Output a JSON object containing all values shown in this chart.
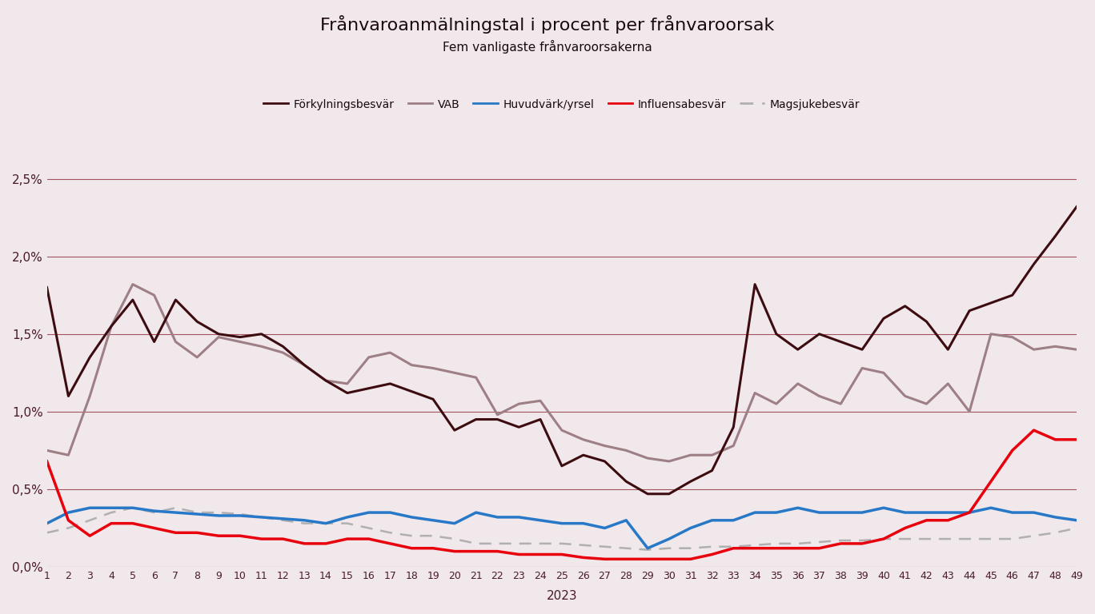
{
  "title": "Frånvaroanmälningstal i procent per frånvaroorsak",
  "subtitle": "Fem vanligaste frånvaroorsakerna",
  "xlabel": "2023",
  "weeks": [
    1,
    2,
    3,
    4,
    5,
    6,
    7,
    8,
    9,
    10,
    11,
    12,
    13,
    14,
    15,
    16,
    17,
    18,
    19,
    20,
    21,
    22,
    23,
    24,
    25,
    26,
    27,
    28,
    29,
    30,
    31,
    32,
    33,
    34,
    35,
    36,
    37,
    38,
    39,
    40,
    41,
    42,
    43,
    44,
    45,
    46,
    47,
    48,
    49
  ],
  "forkylning": [
    0.018,
    0.011,
    0.0135,
    0.0155,
    0.0172,
    0.0145,
    0.0172,
    0.0158,
    0.015,
    0.0148,
    0.015,
    0.0142,
    0.013,
    0.012,
    0.0112,
    0.0115,
    0.0118,
    0.0113,
    0.0108,
    0.0088,
    0.0095,
    0.0095,
    0.009,
    0.0095,
    0.0065,
    0.0072,
    0.0068,
    0.0055,
    0.0047,
    0.0047,
    0.0055,
    0.0062,
    0.009,
    0.0182,
    0.015,
    0.014,
    0.015,
    0.0145,
    0.014,
    0.016,
    0.0168,
    0.0158,
    0.014,
    0.0165,
    0.017,
    0.0175,
    0.0195,
    0.0213,
    0.0232
  ],
  "vab": [
    0.0075,
    0.0072,
    0.011,
    0.0155,
    0.0182,
    0.0175,
    0.0145,
    0.0135,
    0.0148,
    0.0145,
    0.0142,
    0.0138,
    0.013,
    0.012,
    0.0118,
    0.0135,
    0.0138,
    0.013,
    0.0128,
    0.0125,
    0.0122,
    0.0098,
    0.0105,
    0.0107,
    0.0088,
    0.0082,
    0.0078,
    0.0075,
    0.007,
    0.0068,
    0.0072,
    0.0072,
    0.0078,
    0.0112,
    0.0105,
    0.0118,
    0.011,
    0.0105,
    0.0128,
    0.0125,
    0.011,
    0.0105,
    0.0118,
    0.01,
    0.015,
    0.0148,
    0.014,
    0.0142,
    0.014
  ],
  "huvudvark": [
    0.0028,
    0.0035,
    0.0038,
    0.0038,
    0.0038,
    0.0036,
    0.0035,
    0.0034,
    0.0033,
    0.0033,
    0.0032,
    0.0031,
    0.003,
    0.0028,
    0.0032,
    0.0035,
    0.0035,
    0.0032,
    0.003,
    0.0028,
    0.0035,
    0.0032,
    0.0032,
    0.003,
    0.0028,
    0.0028,
    0.0025,
    0.003,
    0.0012,
    0.0018,
    0.0025,
    0.003,
    0.003,
    0.0035,
    0.0035,
    0.0038,
    0.0035,
    0.0035,
    0.0035,
    0.0038,
    0.0035,
    0.0035,
    0.0035,
    0.0035,
    0.0038,
    0.0035,
    0.0035,
    0.0032,
    0.003
  ],
  "influensa": [
    0.0068,
    0.003,
    0.002,
    0.0028,
    0.0028,
    0.0025,
    0.0022,
    0.0022,
    0.002,
    0.002,
    0.0018,
    0.0018,
    0.0015,
    0.0015,
    0.0018,
    0.0018,
    0.0015,
    0.0012,
    0.0012,
    0.001,
    0.001,
    0.001,
    0.0008,
    0.0008,
    0.0008,
    0.0006,
    0.0005,
    0.0005,
    0.0005,
    0.0005,
    0.0005,
    0.0008,
    0.0012,
    0.0012,
    0.0012,
    0.0012,
    0.0012,
    0.0015,
    0.0015,
    0.0018,
    0.0025,
    0.003,
    0.003,
    0.0035,
    0.0055,
    0.0075,
    0.0088,
    0.0082,
    0.0082
  ],
  "magsjuka": [
    0.0022,
    0.0025,
    0.003,
    0.0035,
    0.0038,
    0.0035,
    0.0038,
    0.0035,
    0.0035,
    0.0034,
    0.0032,
    0.003,
    0.0028,
    0.0028,
    0.0028,
    0.0025,
    0.0022,
    0.002,
    0.002,
    0.0018,
    0.0015,
    0.0015,
    0.0015,
    0.0015,
    0.0015,
    0.0014,
    0.0013,
    0.0012,
    0.0011,
    0.0012,
    0.0012,
    0.0013,
    0.0013,
    0.0014,
    0.0015,
    0.0015,
    0.0016,
    0.0017,
    0.0017,
    0.0018,
    0.0018,
    0.0018,
    0.0018,
    0.0018,
    0.0018,
    0.0018,
    0.002,
    0.0022,
    0.0025
  ],
  "forkylning_color": "#3d0c11",
  "vab_color": "#9e7f86",
  "huvudvark_color": "#2878c8",
  "influensa_color": "#e8000d",
  "magsjuka_color": "#b0b0b0",
  "background_color": "#f0e8eb",
  "grid_color": "#8b2030",
  "title_color": "#1a0a0e",
  "tick_color": "#4a1a2a",
  "ylim_max": 0.027,
  "ytick_vals": [
    0.0,
    0.005,
    0.01,
    0.015,
    0.02,
    0.025
  ],
  "ytick_labels": [
    "0,0%",
    "0,5%",
    "1,0%",
    "1,5%",
    "2,0%",
    "2,5%"
  ]
}
